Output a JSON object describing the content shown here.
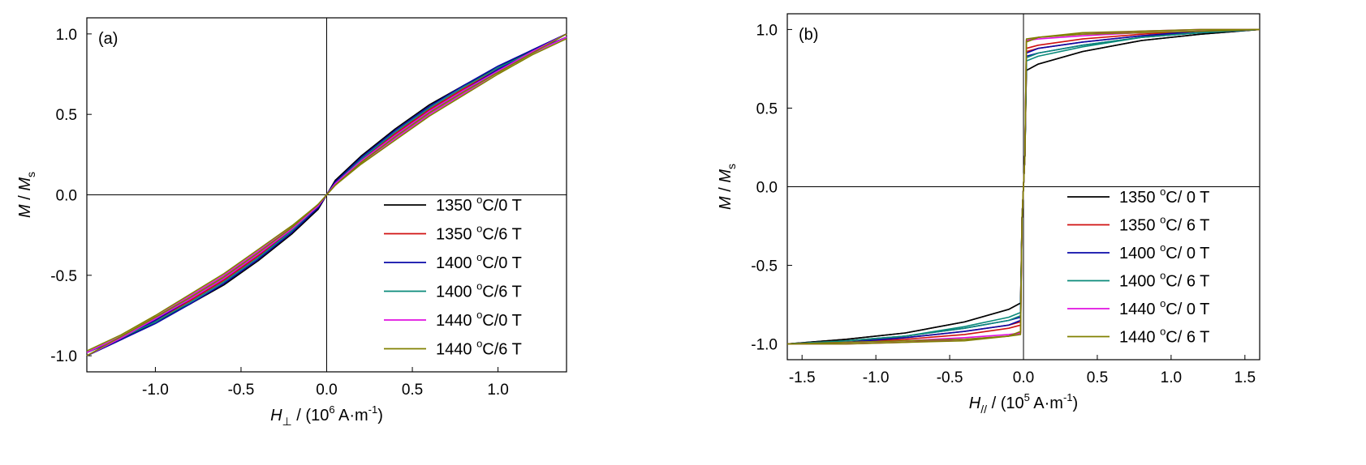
{
  "chart_data": [
    {
      "type": "line",
      "panel_label": "(a)",
      "xlabel": {
        "main": "H",
        "sub": "⊥",
        "text": " / (10",
        "exp": "6",
        "unit": " A·m",
        "unit_exp": "-1",
        "close": ")"
      },
      "ylabel": {
        "main": "M",
        "mid": " / ",
        "main2": "M",
        "sub": "s"
      },
      "xlim": [
        -1.4,
        1.4
      ],
      "ylim": [
        -1.1,
        1.1
      ],
      "x_ticks": [
        -1.0,
        -0.5,
        0.0,
        0.5,
        1.0
      ],
      "x_tick_labels": [
        "-1.0",
        "-0.5",
        "0.0",
        "0.5",
        "1.0"
      ],
      "y_ticks": [
        -1.0,
        -0.5,
        0.0,
        0.5,
        1.0
      ],
      "y_tick_labels": [
        "-1.0",
        "-0.5",
        "0.0",
        "0.5",
        "1.0"
      ],
      "zero_lines": true,
      "grid": false,
      "legend_position": "bottom-right",
      "series": [
        {
          "name": "1350 °C/0 T",
          "label": "1350",
          "label_sup": "o",
          "label_rest": "C/0 T",
          "color": "#000000",
          "x": [
            -1.4,
            -1.2,
            -1.0,
            -0.8,
            -0.6,
            -0.4,
            -0.2,
            -0.05,
            0.0,
            0.05,
            0.2,
            0.4,
            0.6,
            0.8,
            1.0,
            1.2,
            1.4
          ],
          "y": [
            -0.98,
            -0.89,
            -0.78,
            -0.66,
            -0.53,
            -0.38,
            -0.22,
            -0.09,
            0.0,
            0.09,
            0.24,
            0.41,
            0.56,
            0.68,
            0.79,
            0.9,
            1.0
          ]
        },
        {
          "name": "1350 °C/6 T",
          "label": "1350",
          "label_sup": "o",
          "label_rest": "C/6 T",
          "color": "#d01010",
          "x": [
            -1.4,
            -1.2,
            -1.0,
            -0.8,
            -0.6,
            -0.4,
            -0.2,
            -0.05,
            0.0,
            0.05,
            0.2,
            0.4,
            0.6,
            0.8,
            1.0,
            1.2,
            1.4
          ],
          "y": [
            -0.98,
            -0.88,
            -0.77,
            -0.64,
            -0.51,
            -0.36,
            -0.2,
            -0.07,
            0.0,
            0.07,
            0.21,
            0.38,
            0.53,
            0.66,
            0.78,
            0.89,
            1.0
          ]
        },
        {
          "name": "1400 °C/0 T",
          "label": "1400",
          "label_sup": "o",
          "label_rest": "C/0 T",
          "color": "#0a0aa8",
          "x": [
            -1.4,
            -1.2,
            -1.0,
            -0.8,
            -0.6,
            -0.4,
            -0.2,
            -0.05,
            0.0,
            0.05,
            0.2,
            0.4,
            0.6,
            0.8,
            1.0,
            1.2,
            1.4
          ],
          "y": [
            -0.98,
            -0.89,
            -0.78,
            -0.65,
            -0.52,
            -0.37,
            -0.21,
            -0.08,
            0.0,
            0.08,
            0.23,
            0.4,
            0.55,
            0.68,
            0.8,
            0.9,
            1.0
          ]
        },
        {
          "name": "1400 °C/6 T",
          "label": "1400",
          "label_sup": "o",
          "label_rest": "C/6 T",
          "color": "#0a8a7a",
          "x": [
            -1.4,
            -1.2,
            -1.0,
            -0.8,
            -0.6,
            -0.4,
            -0.2,
            -0.05,
            0.0,
            0.05,
            0.2,
            0.4,
            0.6,
            0.8,
            1.0,
            1.2,
            1.4
          ],
          "y": [
            -0.98,
            -0.88,
            -0.77,
            -0.64,
            -0.51,
            -0.36,
            -0.2,
            -0.07,
            0.0,
            0.07,
            0.22,
            0.39,
            0.54,
            0.67,
            0.79,
            0.89,
            1.0
          ]
        },
        {
          "name": "1440 °C/0 T",
          "label": "1440",
          "label_sup": "o",
          "label_rest": "C/0 T",
          "color": "#e010e0",
          "x": [
            -1.4,
            -1.2,
            -1.0,
            -0.8,
            -0.6,
            -0.4,
            -0.2,
            -0.05,
            0.0,
            0.05,
            0.2,
            0.4,
            0.6,
            0.8,
            1.0,
            1.2,
            1.4
          ],
          "y": [
            -0.98,
            -0.88,
            -0.76,
            -0.63,
            -0.5,
            -0.35,
            -0.2,
            -0.07,
            0.0,
            0.07,
            0.21,
            0.37,
            0.52,
            0.65,
            0.77,
            0.89,
            1.0
          ]
        },
        {
          "name": "1440 °C/6 T",
          "label": "1440",
          "label_sup": "o",
          "label_rest": "C/6 T",
          "color": "#808000",
          "x": [
            -1.4,
            -1.2,
            -1.0,
            -0.8,
            -0.6,
            -0.4,
            -0.2,
            -0.05,
            0.0,
            0.05,
            0.2,
            0.4,
            0.6,
            0.8,
            1.0,
            1.2,
            1.4
          ],
          "y": [
            -0.97,
            -0.87,
            -0.75,
            -0.62,
            -0.49,
            -0.34,
            -0.19,
            -0.06,
            0.0,
            0.06,
            0.2,
            0.36,
            0.51,
            0.64,
            0.76,
            0.88,
            1.0
          ]
        }
      ]
    },
    {
      "type": "line",
      "panel_label": "(b)",
      "xlabel": {
        "main": "H",
        "sub": "//",
        "text": " / (10",
        "exp": "5",
        "unit": " A·m",
        "unit_exp": "-1",
        "close": ")"
      },
      "ylabel": {
        "main": "M",
        "mid": " / ",
        "main2": "M",
        "sub": "s"
      },
      "xlim": [
        -1.6,
        1.6
      ],
      "ylim": [
        -1.1,
        1.1
      ],
      "x_ticks": [
        -1.5,
        -1.0,
        -0.5,
        0.0,
        0.5,
        1.0,
        1.5
      ],
      "x_tick_labels": [
        "-1.5",
        "-1.0",
        "-0.5",
        "0.0",
        "0.5",
        "1.0",
        "1.5"
      ],
      "y_ticks": [
        -1.0,
        -0.5,
        0.0,
        0.5,
        1.0
      ],
      "y_tick_labels": [
        "-1.0",
        "-0.5",
        "0.0",
        "0.5",
        "1.0"
      ],
      "zero_lines": true,
      "grid": false,
      "legend_position": "bottom-right",
      "series": [
        {
          "name": "1350 °C/ 0 T",
          "label": "1350",
          "label_sup": "o",
          "label_rest": "C/ 0 T",
          "color": "#000000",
          "x": [
            -1.6,
            -1.2,
            -0.8,
            -0.4,
            -0.1,
            -0.02,
            -0.01,
            0.01,
            0.02,
            0.1,
            0.4,
            0.8,
            1.2,
            1.6
          ],
          "y": [
            -1.0,
            -0.97,
            -0.93,
            -0.86,
            -0.78,
            -0.74,
            -0.2,
            0.2,
            0.74,
            0.78,
            0.86,
            0.93,
            0.97,
            1.0
          ]
        },
        {
          "name": "1350 °C/ 6 T",
          "label": "1350",
          "label_sup": "o",
          "label_rest": "C/ 6 T",
          "color": "#d01010",
          "x": [
            -1.6,
            -1.2,
            -0.8,
            -0.4,
            -0.1,
            -0.02,
            -0.01,
            0.01,
            0.02,
            0.1,
            0.4,
            0.8,
            1.2,
            1.6
          ],
          "y": [
            -1.0,
            -0.98,
            -0.96,
            -0.92,
            -0.88,
            -0.86,
            -0.2,
            0.2,
            0.88,
            0.9,
            0.94,
            0.97,
            0.99,
            1.0
          ]
        },
        {
          "name": "1400 °C/ 0 T",
          "label": "1400",
          "label_sup": "o",
          "label_rest": "C/ 0 T",
          "color": "#0a0aa8",
          "x": [
            -1.6,
            -1.2,
            -0.8,
            -0.4,
            -0.1,
            -0.02,
            -0.01,
            0.01,
            0.02,
            0.1,
            0.4,
            0.8,
            1.2,
            1.6
          ],
          "y": [
            -1.0,
            -0.98,
            -0.95,
            -0.9,
            -0.85,
            -0.83,
            -0.2,
            0.2,
            0.85,
            0.88,
            0.92,
            0.96,
            0.99,
            1.0
          ]
        },
        {
          "name": "1400 °C/ 6 T",
          "label": "1400",
          "label_sup": "o",
          "label_rest": "C/ 6 T",
          "color": "#0a8a7a",
          "x": [
            -1.6,
            -1.2,
            -0.8,
            -0.4,
            -0.1,
            -0.02,
            -0.01,
            0.01,
            0.02,
            0.1,
            0.4,
            0.8,
            1.2,
            1.6
          ],
          "y": [
            -1.0,
            -0.98,
            -0.95,
            -0.89,
            -0.83,
            -0.8,
            -0.2,
            0.2,
            0.82,
            0.85,
            0.9,
            0.95,
            0.98,
            1.0
          ]
        },
        {
          "name": "1440 °C/ 0 T",
          "label": "1440",
          "label_sup": "o",
          "label_rest": "C/ 0 T",
          "color": "#e010e0",
          "x": [
            -1.6,
            -1.2,
            -0.8,
            -0.4,
            -0.1,
            -0.02,
            -0.01,
            0.01,
            0.02,
            0.1,
            0.4,
            0.8,
            1.2,
            1.6
          ],
          "y": [
            -1.0,
            -0.99,
            -0.98,
            -0.96,
            -0.94,
            -0.93,
            -0.2,
            0.2,
            0.93,
            0.95,
            0.97,
            0.99,
            1.0,
            1.0
          ]
        },
        {
          "name": "1440 °C/ 6 T",
          "label": "1440",
          "label_sup": "o",
          "label_rest": "C/ 6 T",
          "color": "#808000",
          "x": [
            -1.6,
            -1.2,
            -0.8,
            -0.4,
            -0.1,
            -0.02,
            -0.01,
            0.01,
            0.02,
            0.1,
            0.4,
            0.8,
            1.2,
            1.6
          ],
          "y": [
            -1.0,
            -0.99,
            -0.98,
            -0.97,
            -0.95,
            -0.94,
            -0.2,
            0.2,
            0.92,
            0.95,
            0.98,
            0.99,
            1.0,
            1.0
          ]
        }
      ]
    }
  ]
}
